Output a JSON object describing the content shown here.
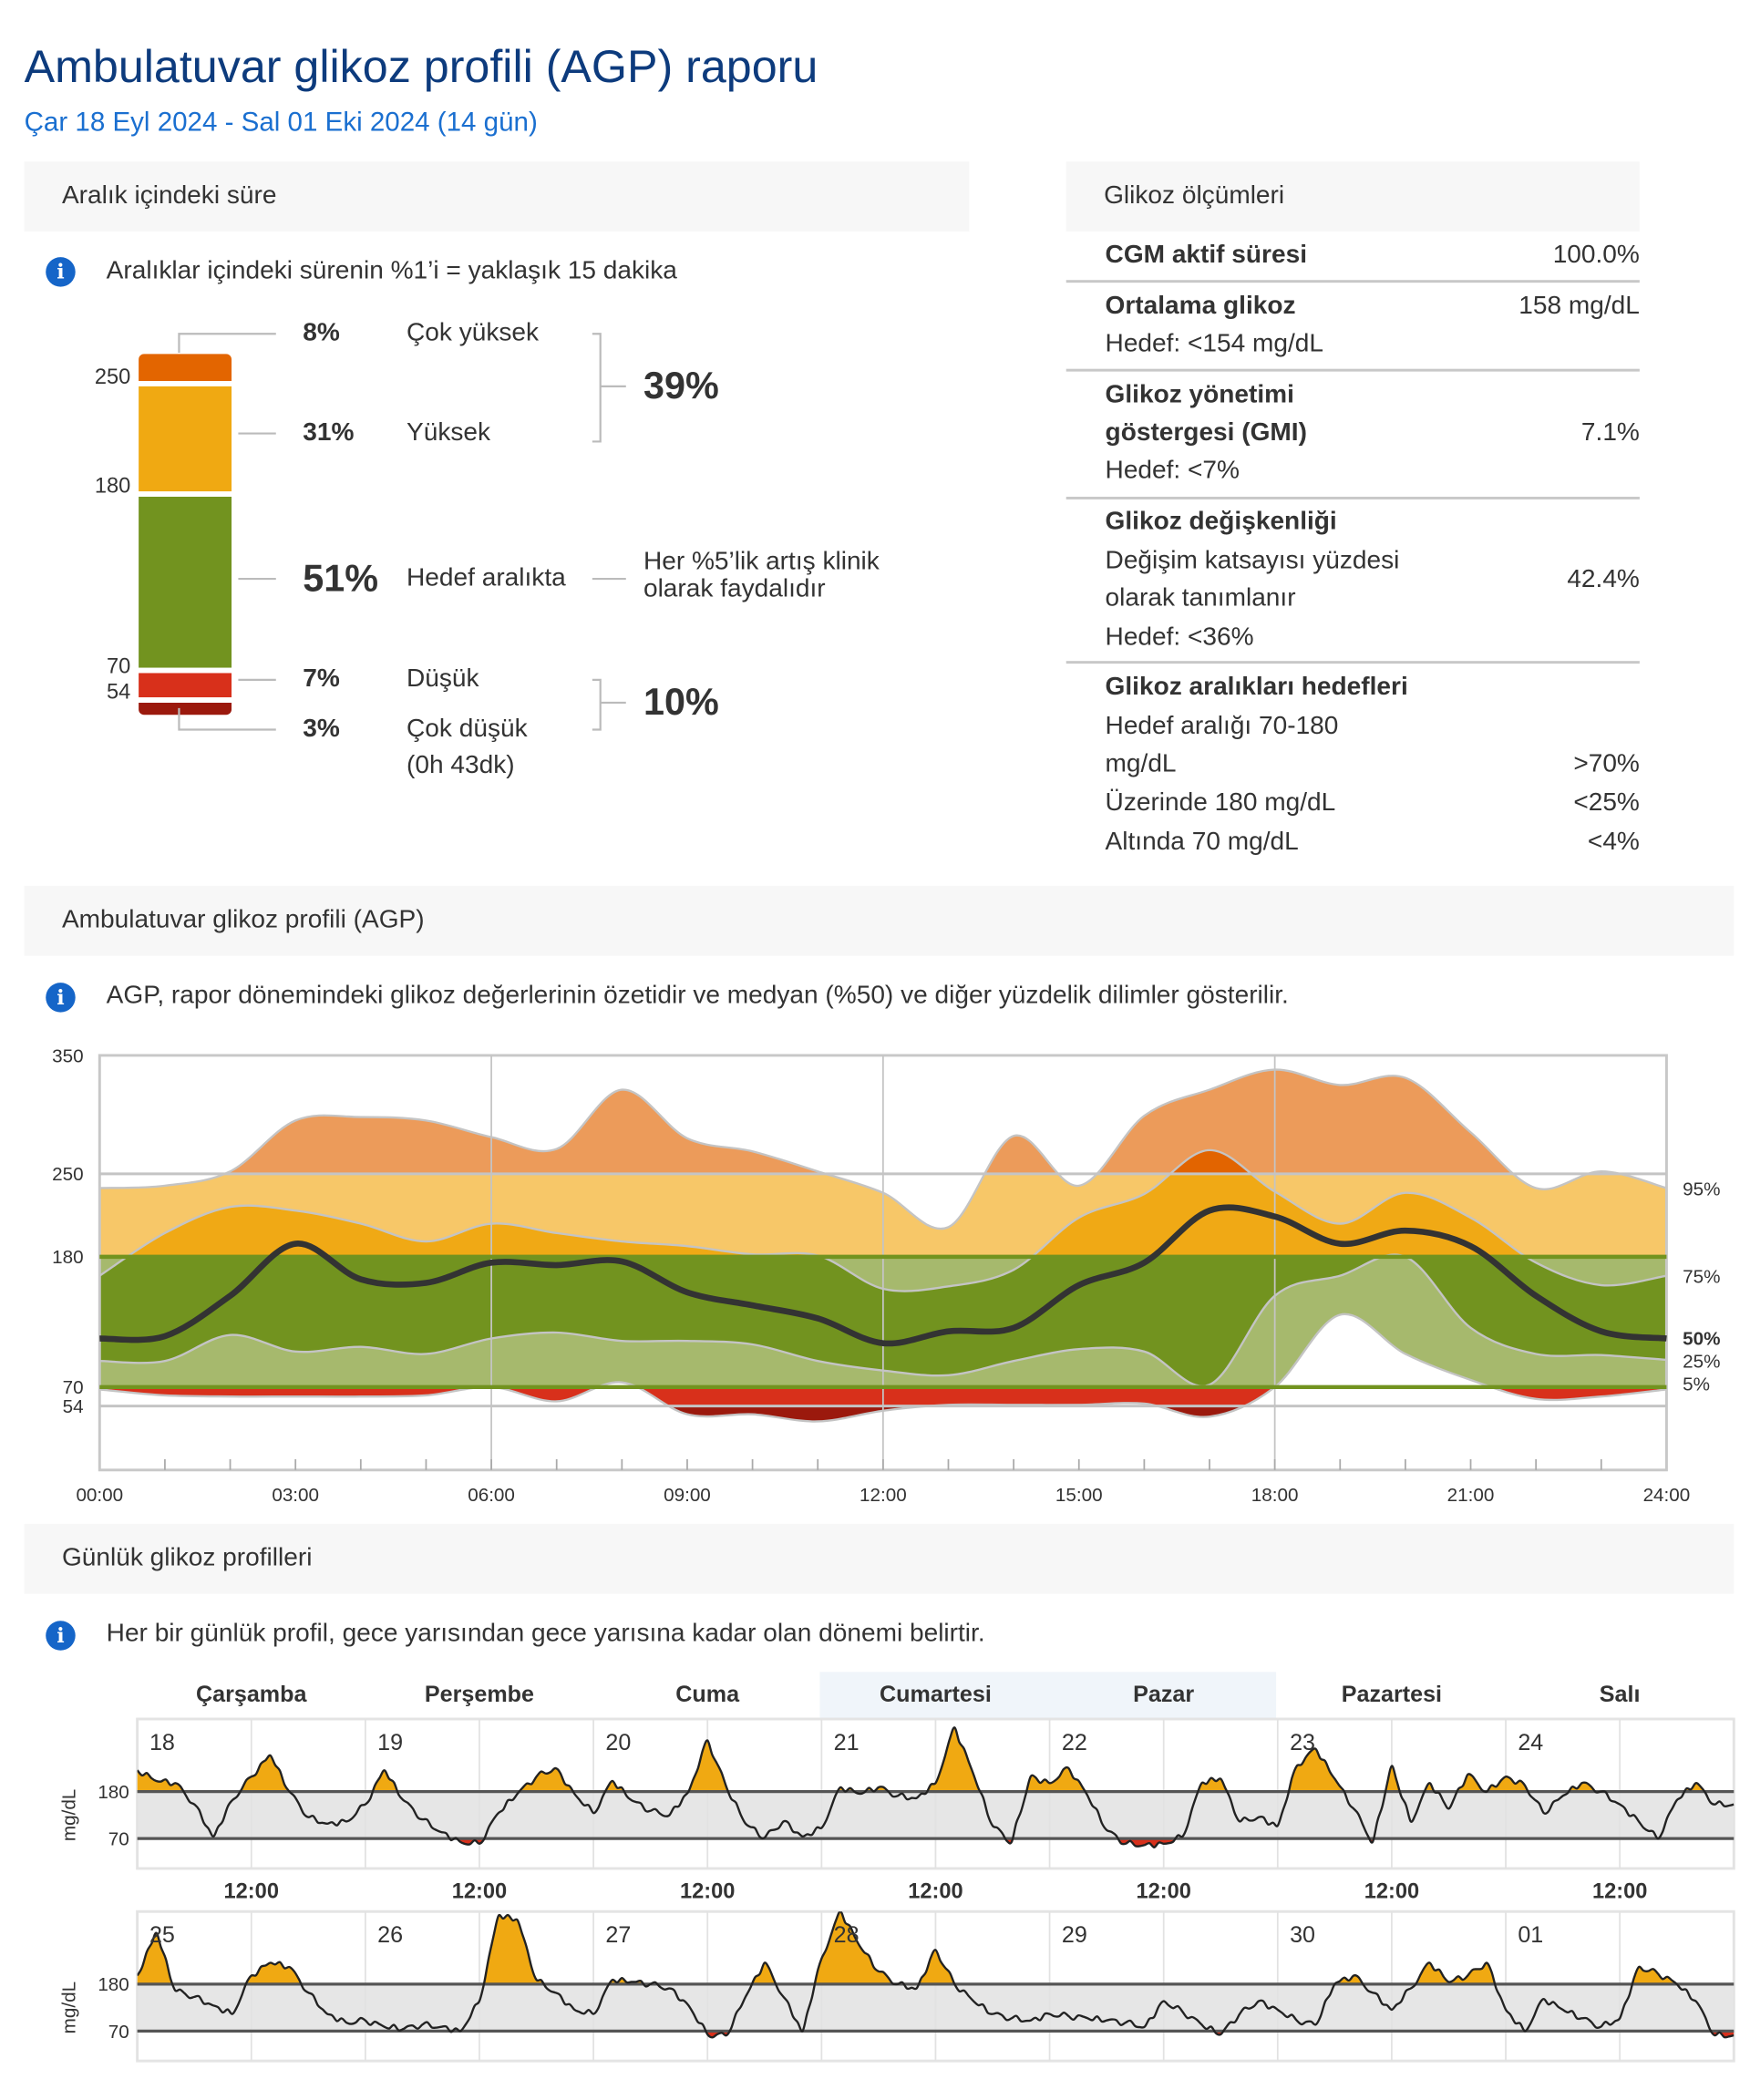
{
  "header": {
    "title": "Ambulatuvar glikoz profili (AGP) raporu",
    "date_range": "Çar 18 Eyl 2024 - Sal 01 Eki 2024 (14 gün)"
  },
  "tir": {
    "section_title": "Aralık içindeki süre",
    "info": "Aralıklar içindeki sürenin %1’i = yaklaşık 15 dakika",
    "scale_labels": [
      "250",
      "180",
      "70",
      "54"
    ],
    "rows": [
      {
        "pct": "8%",
        "label": "Çok yüksek",
        "value": 8,
        "color": "#e36500"
      },
      {
        "pct": "31%",
        "label": "Yüksek",
        "value": 31,
        "color": "#f0a912"
      },
      {
        "pct": "51%",
        "label": "Hedef aralıkta",
        "value": 51,
        "color": "#72931f"
      },
      {
        "pct": "7%",
        "label": "Düşük",
        "value": 7,
        "color": "#d8301b"
      },
      {
        "pct": "3%",
        "label": "Çok düşük",
        "value": 3,
        "color": "#9b190d"
      }
    ],
    "very_low_duration": "(0h 43dk)",
    "combined_high": "39%",
    "combined_low": "10%",
    "note_line1": "Her %5’lik artış klinik",
    "note_line2": "olarak faydalıdır"
  },
  "metrics": {
    "section_title": "Glikoz ölçümleri",
    "cgm": {
      "label": "CGM aktif süresi",
      "value": "100.0%"
    },
    "mean": {
      "label": "Ortalama glikoz",
      "value": "158 mg/dL",
      "target": "Hedef: <154 mg/dL"
    },
    "gmi": {
      "label1": "Glikoz yönetimi",
      "label2": "göstergesi (GMI)",
      "value": "7.1%",
      "target": "Hedef: <7%"
    },
    "cv": {
      "label": "Glikoz değişkenliği",
      "desc1": "Değişim katsayısı yüzdesi",
      "desc2": "olarak tanımlanır",
      "value": "42.4%",
      "target": "Hedef: <36%"
    },
    "targets": {
      "label": "Glikoz aralıkları hedefleri",
      "r1a": "Hedef aralığı 70-180",
      "r1b": "mg/dL",
      "v1": ">70%",
      "r2": "Üzerinde 180 mg/dL",
      "v2": "<25%",
      "r3": "Altında 70 mg/dL",
      "v3": "<4%"
    }
  },
  "agp": {
    "section_title": "Ambulatuvar glikoz profili (AGP)",
    "info": "AGP, rapor dönemindeki glikoz değerlerinin özetidir ve medyan (%50) ve diğer yüzdelik dilimler gösterilir."
  },
  "daily": {
    "section_title": "Günlük glikoz profilleri",
    "info": "Her bir günlük profil, gece yarısından gece yarısına kadar olan dönemi belirtir.",
    "weekdays": [
      "Çarşamba",
      "Perşembe",
      "Cuma",
      "Cumartesi",
      "Pazar",
      "Pazartesi",
      "Salı"
    ],
    "noon_label": "12:00",
    "unit": "mg/dL",
    "y_labels": [
      "180",
      "70"
    ]
  },
  "chart_data": [
    {
      "type": "area",
      "title": "Ambulatuvar glikoz profili (AGP)",
      "xlabel": "",
      "ylabel": "mg/dL",
      "xlim": [
        0,
        24
      ],
      "ylim": [
        0,
        350
      ],
      "x_ticks": [
        "00:00",
        "03:00",
        "06:00",
        "09:00",
        "12:00",
        "15:00",
        "18:00",
        "21:00",
        "24:00"
      ],
      "y_ticks": [
        "350",
        "250",
        "180",
        "70",
        "54"
      ],
      "y_tick_values": [
        350,
        250,
        180,
        70,
        54
      ],
      "hours": [
        0,
        1,
        2,
        3,
        4,
        5,
        6,
        7,
        8,
        9,
        10,
        11,
        12,
        13,
        14,
        15,
        16,
        17,
        18,
        19,
        20,
        21,
        22,
        23,
        24
      ],
      "series": [
        {
          "name": "95%",
          "values": [
            238,
            240,
            252,
            295,
            298,
            295,
            281,
            271,
            321,
            280,
            269,
            252,
            234,
            205,
            282,
            240,
            299,
            321,
            338,
            325,
            331,
            285,
            238,
            252,
            238
          ]
        },
        {
          "name": "75%",
          "values": [
            164,
            200,
            222,
            219,
            208,
            193,
            208,
            200,
            193,
            189,
            182,
            181,
            153,
            155,
            169,
            213,
            233,
            270,
            235,
            208,
            234,
            213,
            175,
            156,
            164
          ]
        },
        {
          "name": "50%",
          "values": [
            111,
            113,
            147,
            191,
            161,
            158,
            175,
            173,
            176,
            150,
            139,
            128,
            107,
            117,
            120,
            156,
            175,
            219,
            214,
            191,
            202,
            189,
            147,
            117,
            111
          ]
        },
        {
          "name": "25%",
          "values": [
            92,
            92,
            114,
            100,
            104,
            98,
            111,
            116,
            109,
            109,
            106,
            92,
            84,
            80,
            92,
            102,
            100,
            72,
            147,
            164,
            180,
            120,
            98,
            97,
            93
          ]
        },
        {
          "name": "5%",
          "values": [
            68,
            63,
            62,
            62,
            62,
            63,
            70,
            58,
            74,
            47,
            47,
            41,
            50,
            55,
            55,
            55,
            56,
            45,
            70,
            131,
            98,
            76,
            60,
            62,
            68
          ]
        }
      ],
      "target_range": [
        70,
        180
      ],
      "colors": {
        "very_high_outer": "#ec9b5a",
        "very_high_inner": "#e26400",
        "high_outer": "#f7c768",
        "high_inner": "#f0a915",
        "target_outer": "#a6b96d",
        "target_inner": "#72931f",
        "low": "#d8301b",
        "very_low": "#9b190d",
        "median": "#333333"
      }
    },
    {
      "type": "line",
      "title": "Günlük glikoz profilleri",
      "ylim": [
        0,
        350
      ],
      "interval_hours": 2,
      "days": [
        {
          "day": "18",
          "values": [
            230,
            205,
            200,
            150,
            75,
            160,
            215,
            265,
            180,
            120,
            105,
            110
          ]
        },
        {
          "day": "19",
          "values": [
            150,
            230,
            160,
            115,
            85,
            62,
            58,
            130,
            175,
            215,
            235,
            175
          ]
        },
        {
          "day": "20",
          "values": [
            130,
            205,
            160,
            135,
            125,
            180,
            300,
            190,
            105,
            72,
            110,
            75
          ]
        },
        {
          "day": "21",
          "values": [
            95,
            190,
            175,
            190,
            170,
            165,
            200,
            330,
            220,
            100,
            62,
            215
          ]
        },
        {
          "day": "22",
          "values": [
            200,
            235,
            170,
            90,
            58,
            55,
            58,
            75,
            200,
            210,
            110,
            120
          ]
        },
        {
          "day": "23",
          "values": [
            100,
            240,
            280,
            210,
            140,
            62,
            240,
            110,
            200,
            140,
            220,
            180
          ]
        },
        {
          "day": "24",
          "values": [
            215,
            195,
            130,
            170,
            200,
            180,
            150,
            110,
            70,
            160,
            200,
            150
          ]
        },
        {
          "day": "25",
          "values": [
            200,
            300,
            165,
            150,
            130,
            110,
            200,
            230,
            220,
            160,
            110,
            90
          ]
        },
        {
          "day": "26",
          "values": [
            95,
            80,
            75,
            85,
            80,
            70,
            140,
            340,
            330,
            190,
            160,
            120
          ]
        },
        {
          "day": "27",
          "values": [
            110,
            190,
            185,
            180,
            170,
            130,
            62,
            60,
            150,
            230,
            150,
            70
          ]
        },
        {
          "day": "28",
          "values": [
            240,
            350,
            270,
            210,
            180,
            170,
            260,
            180,
            140,
            110,
            100,
            95
          ]
        },
        {
          "day": "29",
          "values": [
            110,
            105,
            100,
            95,
            90,
            80,
            140,
            115,
            85,
            62,
            110,
            140
          ]
        },
        {
          "day": "30",
          "values": [
            120,
            95,
            85,
            180,
            200,
            160,
            120,
            170,
            230,
            185,
            200,
            230
          ]
        },
        {
          "day": "01",
          "values": [
            120,
            70,
            145,
            120,
            100,
            80,
            100,
            220,
            205,
            180,
            140,
            60
          ]
        }
      ],
      "colors": {
        "above": "#f0a912",
        "below": "#d8301b",
        "range_band": "#e6e6e6",
        "line": "#222222"
      }
    }
  ]
}
